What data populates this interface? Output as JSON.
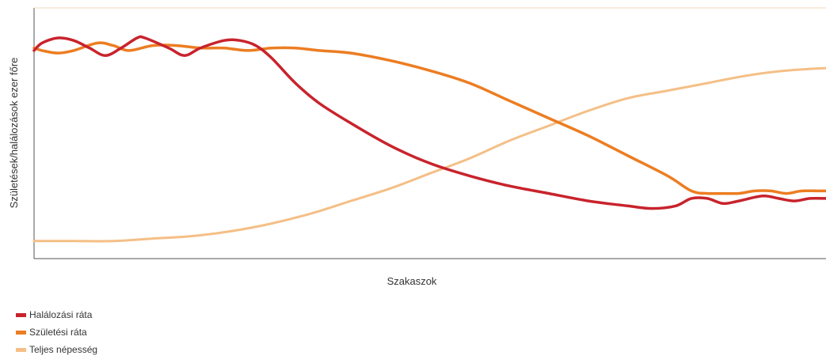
{
  "chart_data": {
    "type": "line",
    "title": "",
    "xlabel": "Szakaszok",
    "ylabel": "Születések/halálozások ezer főre",
    "xlim": [
      0,
      100
    ],
    "ylim": [
      0,
      100
    ],
    "grid": false,
    "legend_position": "bottom-left",
    "series": [
      {
        "name": "Halálozási ráta",
        "color": "#c8232c",
        "x": [
          0,
          1,
          3,
          5,
          7,
          9,
          11,
          13,
          14,
          17,
          19,
          21,
          24,
          26,
          28,
          30,
          33,
          36,
          40,
          45,
          50,
          55,
          60,
          65,
          70,
          75,
          78,
          81,
          83,
          85,
          87,
          89,
          92,
          94,
          96,
          98,
          100
        ],
        "y": [
          83,
          86,
          88,
          87,
          84,
          81,
          84,
          88,
          88,
          84,
          81,
          84,
          87,
          87,
          85,
          80,
          70,
          62,
          54,
          45,
          38,
          33,
          29,
          26,
          23,
          21,
          20,
          21,
          24,
          24,
          22,
          23,
          25,
          24,
          23,
          24,
          24
        ]
      },
      {
        "name": "Születési ráta",
        "color": "#ec7d22",
        "x": [
          0,
          1,
          3,
          5,
          8,
          10,
          12,
          15,
          18,
          21,
          24,
          27,
          30,
          33,
          36,
          40,
          45,
          50,
          55,
          60,
          65,
          70,
          75,
          80,
          83,
          85,
          87,
          89,
          91,
          93,
          95,
          97,
          100
        ],
        "y": [
          84,
          83,
          82,
          83,
          86,
          85,
          83,
          85,
          85,
          84,
          84,
          83,
          84,
          84,
          83,
          82,
          79,
          75,
          70,
          63,
          56,
          49,
          41,
          33,
          27,
          26,
          26,
          26,
          27,
          27,
          26,
          27,
          27
        ]
      },
      {
        "name": "Teljes népesség",
        "color": "#f4bf86",
        "x": [
          0,
          5,
          10,
          15,
          20,
          25,
          30,
          35,
          40,
          45,
          50,
          55,
          60,
          65,
          70,
          75,
          80,
          85,
          90,
          95,
          100
        ],
        "y": [
          7,
          7,
          7,
          8,
          9,
          11,
          14,
          18,
          23,
          28,
          34,
          40,
          47,
          53,
          59,
          64,
          67,
          70,
          73,
          75,
          76
        ]
      }
    ]
  }
}
